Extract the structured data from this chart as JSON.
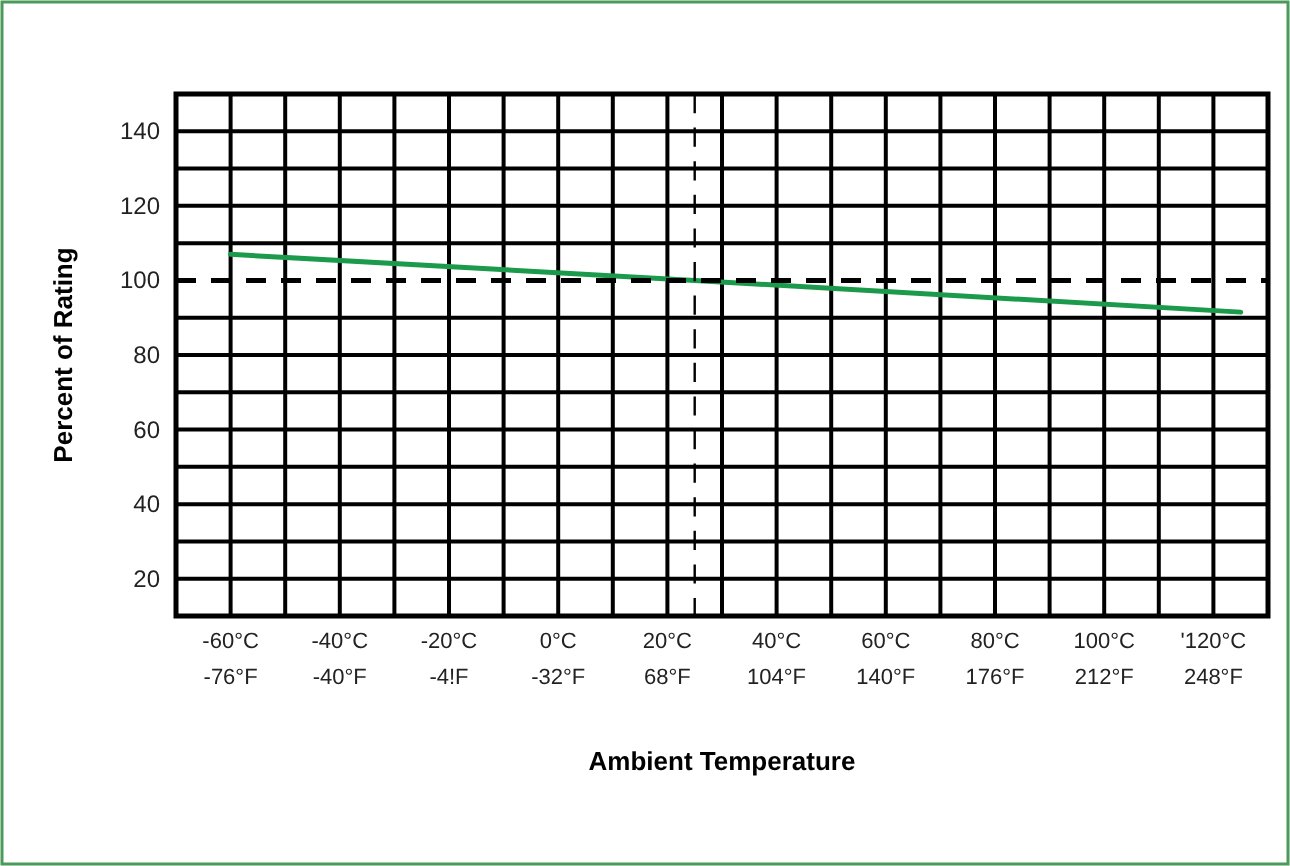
{
  "chart_data": {
    "type": "line",
    "xlabel": "Ambient Temperature",
    "ylabel": "Percent of Rating",
    "x": [
      -60,
      25,
      125
    ],
    "series": [
      {
        "color": "#1a9a4a",
        "values": [
          107,
          100,
          91.5
        ]
      }
    ],
    "xlim": [
      -70,
      130
    ],
    "xticks": [
      {
        "value": -60,
        "label": "-60°C"
      },
      {
        "value": -50,
        "label": null
      },
      {
        "value": -40,
        "label": "-40°C"
      },
      {
        "value": -30,
        "label": null
      },
      {
        "value": -20,
        "label": "-20°C"
      },
      {
        "value": -10,
        "label": null
      },
      {
        "value": 0,
        "label": "0°C"
      },
      {
        "value": 10,
        "label": null
      },
      {
        "value": 20,
        "label": "20°C"
      },
      {
        "value": 30,
        "label": null
      },
      {
        "value": 40,
        "label": "40°C"
      },
      {
        "value": 50,
        "label": null
      },
      {
        "value": 60,
        "label": "60°C"
      },
      {
        "value": 70,
        "label": null
      },
      {
        "value": 80,
        "label": "80°C"
      },
      {
        "value": 90,
        "label": null
      },
      {
        "value": 100,
        "label": "100°C"
      },
      {
        "value": 110,
        "label": null
      },
      {
        "value": 120,
        "label": "'120°C"
      }
    ],
    "annotations": [
      "-76°F",
      "-40°F",
      "-4!F",
      "-32°F",
      "68°F",
      "104°F",
      "140°F",
      "176°F",
      "212°F",
      "248°F"
    ],
    "ylim": [
      10,
      150
    ],
    "yticks": [
      20,
      {
        "value": 30,
        "label": null
      },
      40,
      {
        "value": 50,
        "label": null
      },
      60,
      {
        "value": 70,
        "label": null
      },
      80,
      {
        "value": 90,
        "label": null
      },
      100,
      {
        "value": 110,
        "label": null
      },
      120,
      {
        "value": 130,
        "label": null
      },
      140
    ],
    "grid": true,
    "ref_lines": [
      {
        "axis": "y",
        "value": 100,
        "color": "#000000",
        "line_style": "dashed"
      },
      {
        "axis": "x",
        "value": 25,
        "color": "#000000",
        "line_style": "dashed"
      }
    ],
    "marker": "none",
    "line_style": "solid"
  }
}
